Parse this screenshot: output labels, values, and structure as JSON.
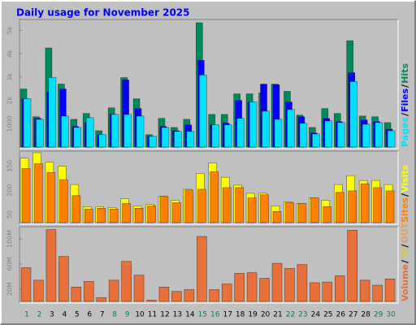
{
  "chart_data": [
    {
      "type": "bar",
      "title": "Daily usage for November 2025",
      "title_color": "#0000ff",
      "ylim": [
        0,
        5400
      ],
      "yticks": [
        1000,
        {
          "value": 2000,
          "label": "2k"
        },
        {
          "value": 3000,
          "label": "3k"
        },
        {
          "value": 4000,
          "label": "4k"
        },
        {
          "value": 5000,
          "label": "5k"
        }
      ],
      "legend_separator": "/",
      "series": [
        {
          "name": "Hits",
          "color": "#008a5c",
          "values": [
            2490,
            1300,
            4250,
            2700,
            1190,
            1440,
            700,
            1680,
            2980,
            2070,
            530,
            1230,
            840,
            1190,
            5330,
            1400,
            1400,
            2280,
            2280,
            2320,
            2700,
            2390,
            1370,
            840,
            1650,
            1440,
            4560,
            1330,
            1300,
            1050
          ]
        },
        {
          "name": "Files",
          "color": "#0000ff",
          "values": [
            2070,
            1230,
            2350,
            2490,
            880,
            1050,
            530,
            1400,
            2880,
            1650,
            460,
            880,
            700,
            950,
            3720,
            950,
            1020,
            2000,
            1930,
            2700,
            2670,
            1930,
            1300,
            600,
            1230,
            1090,
            3190,
            1160,
            1090,
            770
          ]
        },
        {
          "name": "Pages",
          "color": "#00e0ff",
          "values": [
            2070,
            1190,
            2980,
            1330,
            840,
            1260,
            530,
            1400,
            1400,
            1330,
            460,
            840,
            670,
            670,
            3090,
            950,
            950,
            1230,
            1930,
            1540,
            1190,
            1610,
            1020,
            560,
            1120,
            1050,
            2810,
            980,
            1050,
            700
          ]
        }
      ]
    },
    {
      "type": "bar",
      "ylim": [
        0,
        433
      ],
      "yticks": [
        50,
        200,
        350
      ],
      "legend_separator": "/",
      "series": [
        {
          "name": "Visits",
          "color": "#ffff00",
          "values": [
            399,
            433,
            374,
            350,
            236,
            99,
            99,
            94,
            148,
            103,
            113,
            163,
            138,
            207,
            305,
            369,
            281,
            232,
            182,
            182,
            103,
            128,
            118,
            153,
            138,
            236,
            291,
            261,
            261,
            236
          ]
        },
        {
          "name": "Sites",
          "color": "#ff8000",
          "values": [
            335,
            365,
            310,
            266,
            167,
            84,
            89,
            84,
            118,
            89,
            103,
            163,
            123,
            202,
            207,
            315,
            217,
            217,
            153,
            172,
            69,
            123,
            118,
            153,
            99,
            187,
            197,
            241,
            217,
            197
          ]
        }
      ]
    },
    {
      "type": "bar",
      "ylim": [
        0,
        117
      ],
      "yticks": [
        {
          "value": 20,
          "label": "20M"
        },
        {
          "value": 60,
          "label": "60M"
        },
        {
          "value": 100,
          "label": "100M"
        }
      ],
      "legend_separator": "/",
      "categories": [
        "1",
        "2",
        "3",
        "4",
        "5",
        "6",
        "7",
        "8",
        "9",
        "10",
        "11",
        "12",
        "13",
        "14",
        "15",
        "16",
        "17",
        "18",
        "19",
        "20",
        "21",
        "22",
        "23",
        "24",
        "25",
        "26",
        "27",
        "28",
        "29",
        "30"
      ],
      "category_colors": [
        "#008040",
        "#008040",
        "#000000",
        "#000000",
        "#000000",
        "#000000",
        "#000000",
        "#008040",
        "#008040",
        "#000000",
        "#000000",
        "#000000",
        "#000000",
        "#000000",
        "#008040",
        "#008040",
        "#000000",
        "#000000",
        "#000000",
        "#000000",
        "#000000",
        "#008040",
        "#008040",
        "#000000",
        "#000000",
        "#000000",
        "#000000",
        "#000000",
        "#008040",
        "#008040"
      ],
      "series": [
        {
          "name": "Volume",
          "color": "#e8703a",
          "values": [
            54,
            34,
            115,
            72,
            23,
            32,
            6,
            34,
            64,
            42,
            2,
            23,
            16,
            19,
            104,
            19,
            28,
            45,
            46,
            37,
            61,
            53,
            59,
            30,
            31,
            41,
            114,
            34,
            26,
            36
          ]
        }
      ],
      "inactive_legend": [
        {
          "name": "IN",
          "color": "#d8c850"
        },
        {
          "name": "OUT",
          "color": "#e8a060"
        }
      ]
    }
  ]
}
